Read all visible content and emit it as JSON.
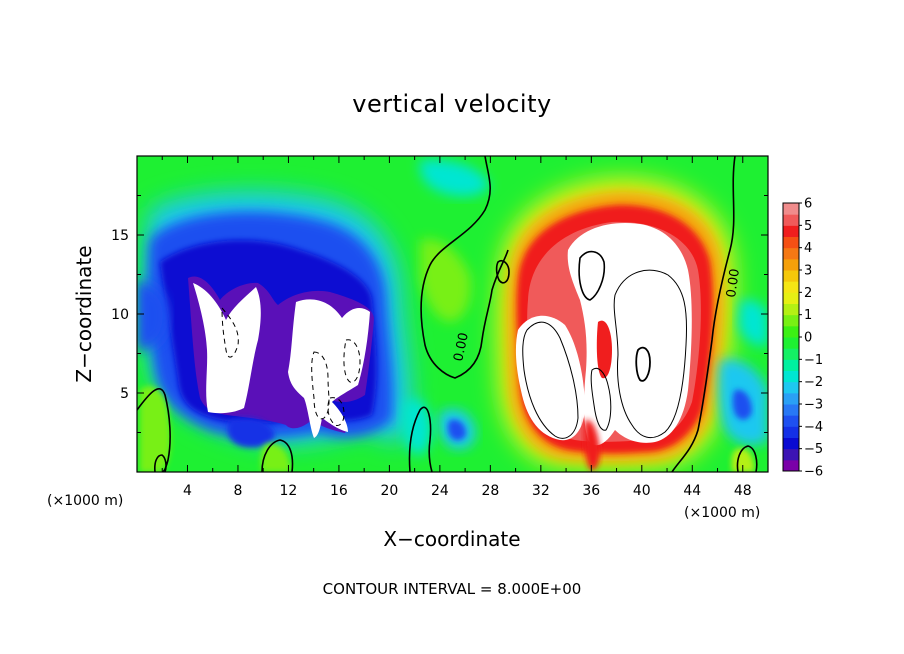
{
  "chart_data": {
    "type": "heatmap",
    "title": "vertical velocity",
    "xlabel": "X−coordinate",
    "ylabel": "Z−coordinate",
    "x_unit_label": "(×1000 m)",
    "y_unit_label": "(×1000 m)",
    "xlim": [
      0,
      50
    ],
    "ylim": [
      0,
      20
    ],
    "x_ticks": [
      4,
      8,
      12,
      16,
      20,
      24,
      28,
      32,
      36,
      40,
      44,
      48
    ],
    "y_ticks": [
      5,
      10,
      15
    ],
    "colorbar": {
      "min": -6,
      "max": 6,
      "ticks": [
        "6",
        "5",
        "4",
        "3",
        "2",
        "1",
        "0",
        "−1",
        "−2",
        "−3",
        "−4",
        "−5",
        "−6"
      ],
      "levels": [
        {
          "lo": -6,
          "hi": -5.5,
          "color": "#7a00a8"
        },
        {
          "lo": -5.5,
          "hi": -5,
          "color": "#3c14b4"
        },
        {
          "lo": -5,
          "hi": -4.5,
          "color": "#0a0ad2"
        },
        {
          "lo": -4.5,
          "hi": -4,
          "color": "#1430e6"
        },
        {
          "lo": -4,
          "hi": -3.5,
          "color": "#1e50f0"
        },
        {
          "lo": -3.5,
          "hi": -3,
          "color": "#2878f5"
        },
        {
          "lo": -3,
          "hi": -2.5,
          "color": "#2aa0f5"
        },
        {
          "lo": -2.5,
          "hi": -2,
          "color": "#1ec8f0"
        },
        {
          "lo": -2,
          "hi": -1.5,
          "color": "#00e6d2"
        },
        {
          "lo": -1.5,
          "hi": -1,
          "color": "#00f0a0"
        },
        {
          "lo": -1,
          "hi": -0.5,
          "color": "#14f064"
        },
        {
          "lo": -0.5,
          "hi": 0,
          "color": "#1ef032"
        },
        {
          "lo": 0,
          "hi": 0.5,
          "color": "#3cf014"
        },
        {
          "lo": 0.5,
          "hi": 1,
          "color": "#78f014"
        },
        {
          "lo": 1,
          "hi": 1.5,
          "color": "#b4f014"
        },
        {
          "lo": 1.5,
          "hi": 2,
          "color": "#e6f014"
        },
        {
          "lo": 2,
          "hi": 2.5,
          "color": "#f5e614"
        },
        {
          "lo": 2.5,
          "hi": 3,
          "color": "#f5c80a"
        },
        {
          "lo": 3,
          "hi": 3.5,
          "color": "#f5a00a"
        },
        {
          "lo": 3.5,
          "hi": 4,
          "color": "#f57814"
        },
        {
          "lo": 4,
          "hi": 4.5,
          "color": "#f55014"
        },
        {
          "lo": 4.5,
          "hi": 5,
          "color": "#f01e1e"
        },
        {
          "lo": 5,
          "hi": 5.5,
          "color": "#f05a5a"
        },
        {
          "lo": 5.5,
          "hi": 6,
          "color": "#f08c8c"
        }
      ]
    },
    "features": [
      {
        "kind": "downdraft",
        "x": 7,
        "z": 9,
        "rx": 5,
        "rz": 7,
        "value": -6
      },
      {
        "kind": "downdraft",
        "x": 16,
        "z": 8,
        "rx": 4,
        "rz": 6,
        "value": -6
      },
      {
        "kind": "updraft",
        "x": 37,
        "z": 9,
        "rx": 7,
        "rz": 9,
        "value": 6
      },
      {
        "kind": "weak-downdraft",
        "x": 25,
        "z": 2,
        "rx": 2,
        "rz": 2,
        "value": -2
      },
      {
        "kind": "weak-downdraft",
        "x": 47,
        "z": 5,
        "rx": 2,
        "rz": 3,
        "value": -2
      },
      {
        "kind": "weak-updraft",
        "x": 2,
        "z": 4,
        "rx": 2,
        "rz": 3,
        "value": 1
      }
    ],
    "contours": [
      {
        "level": 0.0,
        "label": "0.00"
      },
      {
        "level": 0.0,
        "label": "0.00"
      }
    ],
    "annotation": "CONTOUR INTERVAL = 8.000E+00"
  }
}
